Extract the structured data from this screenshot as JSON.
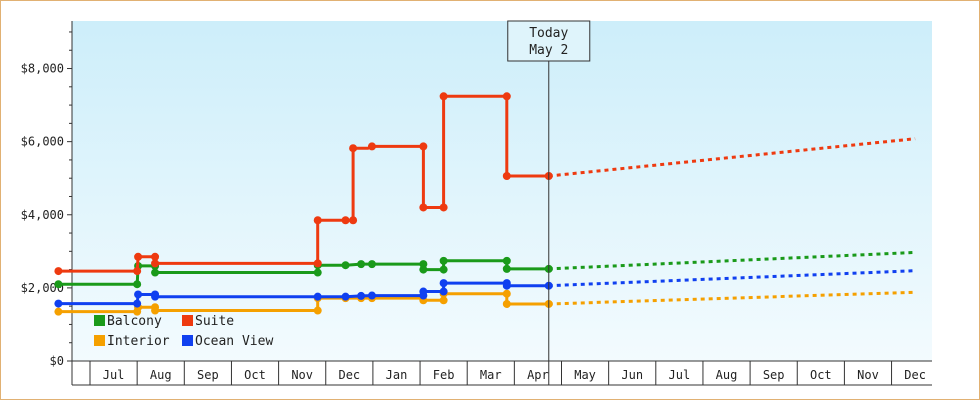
{
  "chart_data": {
    "type": "line",
    "title": "",
    "xlabel": "",
    "ylabel": "",
    "x_tick_labels": [
      "Jul",
      "Aug",
      "Sep",
      "Oct",
      "Nov",
      "Dec",
      "Jan",
      "Feb",
      "Mar",
      "Apr",
      "May",
      "Jun",
      "Jul",
      "Aug",
      "Sep",
      "Oct",
      "Nov",
      "Dec"
    ],
    "y_ticks": [
      0,
      2000,
      4000,
      6000,
      8000
    ],
    "y_tick_labels": [
      "$0",
      "$2,000",
      "$4,000",
      "$6,000",
      "$8,000"
    ],
    "ylim": [
      0,
      9300
    ],
    "x_axis_unit": "month index (Jul = 1)",
    "xlim": [
      0.33,
      18.5
    ],
    "today": {
      "line1": "Today",
      "line2": "May 2",
      "x": 10.73
    },
    "legend": {
      "placement": "bottom-left",
      "entries": [
        "Balcony",
        "Suite",
        "Interior",
        "Ocean View"
      ]
    },
    "series": [
      {
        "name": "Balcony",
        "color": "#1a9a1a",
        "step_points": [
          [
            0.33,
            2100
          ],
          [
            2.0,
            2100
          ],
          [
            2.02,
            2600
          ],
          [
            2.38,
            2600
          ],
          [
            2.38,
            2420
          ],
          [
            5.83,
            2420
          ],
          [
            5.83,
            2620
          ],
          [
            6.42,
            2620
          ],
          [
            6.75,
            2650
          ],
          [
            6.98,
            2650
          ],
          [
            8.07,
            2650
          ],
          [
            8.07,
            2500
          ],
          [
            8.5,
            2500
          ],
          [
            8.5,
            2740
          ],
          [
            9.84,
            2740
          ],
          [
            9.84,
            2520
          ],
          [
            10.73,
            2520
          ]
        ],
        "markers": [
          [
            0.33,
            2100
          ],
          [
            2.0,
            2100
          ],
          [
            2.02,
            2600
          ],
          [
            2.38,
            2600
          ],
          [
            2.38,
            2420
          ],
          [
            5.83,
            2420
          ],
          [
            5.83,
            2620
          ],
          [
            6.42,
            2620
          ],
          [
            6.75,
            2650
          ],
          [
            6.98,
            2650
          ],
          [
            8.07,
            2650
          ],
          [
            8.07,
            2500
          ],
          [
            8.5,
            2500
          ],
          [
            8.5,
            2740
          ],
          [
            9.84,
            2740
          ],
          [
            9.84,
            2520
          ],
          [
            10.73,
            2520
          ]
        ],
        "forecast": [
          [
            10.73,
            2520
          ],
          [
            18.5,
            2970
          ]
        ]
      },
      {
        "name": "Suite",
        "color": "#ee3a10",
        "step_points": [
          [
            0.33,
            2460
          ],
          [
            2.0,
            2460
          ],
          [
            2.02,
            2850
          ],
          [
            2.38,
            2850
          ],
          [
            2.38,
            2670
          ],
          [
            5.83,
            2670
          ],
          [
            5.83,
            3850
          ],
          [
            6.42,
            3850
          ],
          [
            6.58,
            3850
          ],
          [
            6.58,
            5820
          ],
          [
            6.9,
            5820
          ],
          [
            6.98,
            5870
          ],
          [
            8.07,
            5870
          ],
          [
            8.07,
            4200
          ],
          [
            8.5,
            4200
          ],
          [
            8.5,
            7240
          ],
          [
            9.84,
            7240
          ],
          [
            9.84,
            5060
          ],
          [
            10.73,
            5060
          ]
        ],
        "markers": [
          [
            0.33,
            2460
          ],
          [
            2.0,
            2460
          ],
          [
            2.02,
            2850
          ],
          [
            2.38,
            2850
          ],
          [
            2.38,
            2670
          ],
          [
            5.83,
            2670
          ],
          [
            5.83,
            3850
          ],
          [
            6.42,
            3850
          ],
          [
            6.58,
            3850
          ],
          [
            6.58,
            5820
          ],
          [
            6.98,
            5870
          ],
          [
            8.07,
            5870
          ],
          [
            8.07,
            4200
          ],
          [
            8.5,
            4200
          ],
          [
            8.5,
            7240
          ],
          [
            9.84,
            7240
          ],
          [
            9.84,
            5060
          ],
          [
            10.73,
            5060
          ]
        ],
        "forecast": [
          [
            10.73,
            5060
          ],
          [
            18.5,
            6080
          ]
        ]
      },
      {
        "name": "Interior",
        "color": "#f5a000",
        "step_points": [
          [
            0.33,
            1350
          ],
          [
            2.0,
            1350
          ],
          [
            2.02,
            1470
          ],
          [
            2.38,
            1470
          ],
          [
            2.38,
            1380
          ],
          [
            5.83,
            1380
          ],
          [
            5.83,
            1720
          ],
          [
            6.42,
            1720
          ],
          [
            6.75,
            1720
          ],
          [
            6.98,
            1720
          ],
          [
            8.07,
            1720
          ],
          [
            8.07,
            1660
          ],
          [
            8.5,
            1660
          ],
          [
            8.5,
            1840
          ],
          [
            9.84,
            1840
          ],
          [
            9.84,
            1560
          ],
          [
            10.73,
            1560
          ]
        ],
        "markers": [
          [
            0.33,
            1350
          ],
          [
            2.0,
            1350
          ],
          [
            2.02,
            1470
          ],
          [
            2.38,
            1470
          ],
          [
            2.38,
            1380
          ],
          [
            5.83,
            1380
          ],
          [
            5.83,
            1720
          ],
          [
            6.42,
            1720
          ],
          [
            6.75,
            1720
          ],
          [
            6.98,
            1720
          ],
          [
            8.07,
            1660
          ],
          [
            8.5,
            1660
          ],
          [
            8.5,
            1840
          ],
          [
            9.84,
            1840
          ],
          [
            9.84,
            1560
          ],
          [
            10.73,
            1560
          ]
        ],
        "forecast": [
          [
            10.73,
            1560
          ],
          [
            18.5,
            1880
          ]
        ]
      },
      {
        "name": "Ocean View",
        "color": "#1040f0",
        "step_points": [
          [
            0.33,
            1570
          ],
          [
            2.0,
            1570
          ],
          [
            2.02,
            1820
          ],
          [
            2.38,
            1820
          ],
          [
            2.38,
            1760
          ],
          [
            5.83,
            1760
          ],
          [
            5.83,
            1760
          ],
          [
            6.42,
            1760
          ],
          [
            6.75,
            1780
          ],
          [
            6.98,
            1790
          ],
          [
            8.07,
            1790
          ],
          [
            8.07,
            1900
          ],
          [
            8.5,
            1900
          ],
          [
            8.5,
            2130
          ],
          [
            9.84,
            2130
          ],
          [
            9.84,
            2060
          ],
          [
            10.73,
            2060
          ]
        ],
        "markers": [
          [
            0.33,
            1570
          ],
          [
            2.0,
            1570
          ],
          [
            2.02,
            1820
          ],
          [
            2.38,
            1820
          ],
          [
            2.38,
            1760
          ],
          [
            5.83,
            1760
          ],
          [
            6.42,
            1760
          ],
          [
            6.75,
            1780
          ],
          [
            6.98,
            1790
          ],
          [
            8.07,
            1790
          ],
          [
            8.07,
            1900
          ],
          [
            8.5,
            1900
          ],
          [
            8.5,
            2130
          ],
          [
            9.84,
            2130
          ],
          [
            9.84,
            2060
          ],
          [
            10.73,
            2060
          ]
        ],
        "forecast": [
          [
            10.73,
            2060
          ],
          [
            18.5,
            2470
          ]
        ]
      }
    ]
  }
}
